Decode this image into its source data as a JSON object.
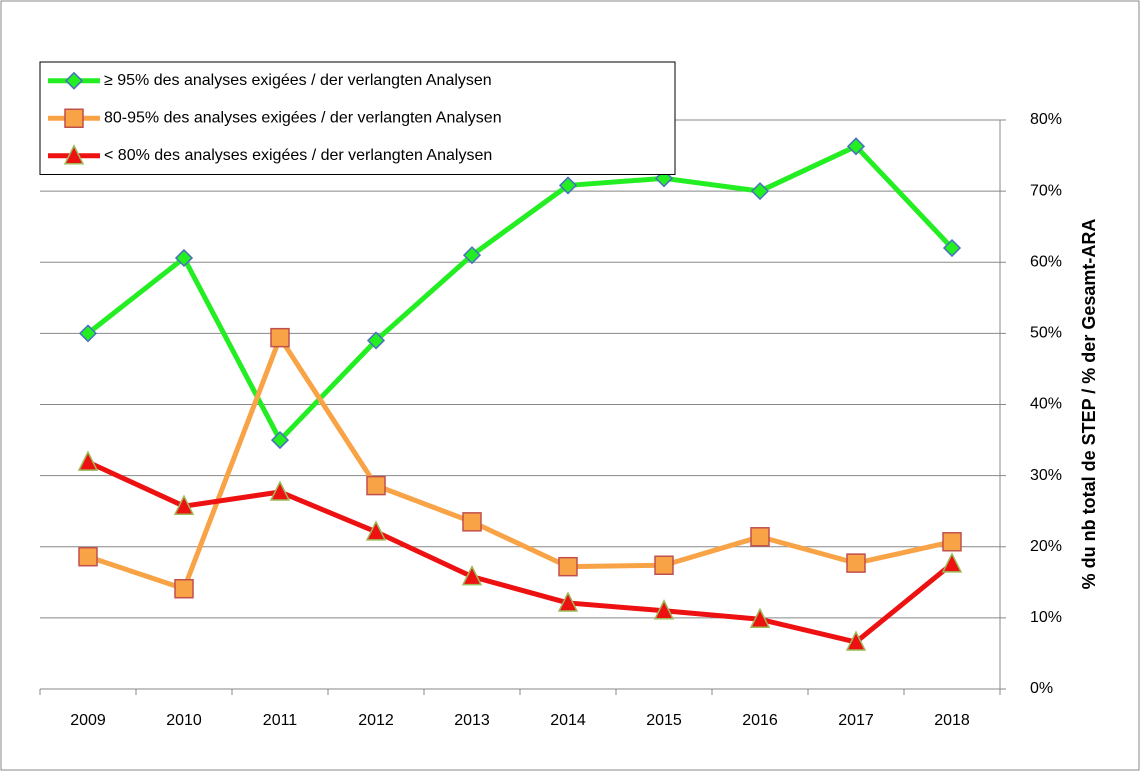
{
  "chart_data": {
    "type": "line",
    "y_axis_label": "% du nb total de STEP / % der Gesamt-ARA",
    "categories": [
      "2009",
      "2010",
      "2011",
      "2012",
      "2013",
      "2014",
      "2015",
      "2016",
      "2017",
      "2018"
    ],
    "series": [
      {
        "name": "≥ 95% des analyses exigées / der verlangten Analysen",
        "color": "#22ee22",
        "marker": "diamond",
        "marker_color": "#22ee22",
        "values": [
          50,
          60.6,
          35,
          49,
          61,
          70.8,
          71.8,
          70,
          76.3,
          62
        ]
      },
      {
        "name": "80-95% des analyses exigées / der verlangten Analysen",
        "color": "#f9a347",
        "marker": "square",
        "marker_color": "#f9a347",
        "values": [
          18.6,
          14.1,
          49.4,
          28.6,
          23.5,
          17.2,
          17.4,
          21.4,
          17.7,
          20.7
        ]
      },
      {
        "name": "< 80% des analyses exigées / der verlangten Analysen",
        "color": "#ee1111",
        "marker": "triangle",
        "marker_color": "#ee1111",
        "values": [
          31.9,
          25.7,
          27.7,
          22.1,
          15.8,
          12.1,
          11,
          9.8,
          6.6,
          17.6
        ]
      }
    ],
    "ylim": [
      0,
      80
    ],
    "yticks": [
      {
        "value": 0,
        "label": "0%"
      },
      {
        "value": 10,
        "label": "10%"
      },
      {
        "value": 20,
        "label": "20%"
      },
      {
        "value": 30,
        "label": "30%"
      },
      {
        "value": 40,
        "label": "40%"
      },
      {
        "value": 50,
        "label": "50%"
      },
      {
        "value": 60,
        "label": "60%"
      },
      {
        "value": 70,
        "label": "70%"
      },
      {
        "value": 80,
        "label": "80%"
      }
    ],
    "y_axis_side": "right",
    "grid": true,
    "legend": "top-left"
  }
}
